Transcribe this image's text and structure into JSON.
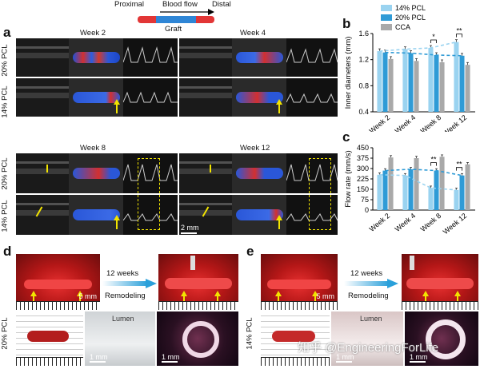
{
  "schematic": {
    "proximal": "Proximal",
    "blood_flow": "Blood flow",
    "distal": "Distal",
    "graft": "Graft",
    "colors": {
      "red": "#e23636",
      "blue": "#2f86d6"
    }
  },
  "panel_a": {
    "label": "a",
    "weeks": [
      "Week 2",
      "Week 4",
      "Week 8",
      "Week 12"
    ],
    "rows": [
      "20% PCL",
      "14% PCL"
    ],
    "scale": "2 mm"
  },
  "panel_b": {
    "label": "b",
    "ylabel": "Inner diameters (mm)",
    "legend": [
      "14% PCL",
      "20% PCL",
      "CCA"
    ],
    "sig": [
      "*",
      "**"
    ]
  },
  "panel_c": {
    "label": "c",
    "ylabel": "Flow rate (mm/s)",
    "sig": [
      "**",
      "**"
    ]
  },
  "panel_d": {
    "label": "d",
    "row": "20% PCL",
    "arrow_top": "12 weeks",
    "arrow_bottom": "Remodeling",
    "scale": "5 mm",
    "lumen": "Lumen",
    "scale_small": "1 mm"
  },
  "panel_e": {
    "label": "e",
    "row": "14% PCL",
    "arrow_top": "12 weeks",
    "arrow_bottom": "Remodeling",
    "scale": "5 mm",
    "lumen": "Lumen",
    "scale_small": "1 mm"
  },
  "watermark": "知乎 @EngineeringForLife",
  "chart_data": [
    {
      "type": "bar",
      "categories": [
        "Week 2",
        "Week 4",
        "Week 8",
        "Week 12"
      ],
      "series": [
        {
          "name": "14% PCL",
          "values": [
            1.33,
            1.36,
            1.38,
            1.47
          ],
          "color": "#9ad3f0"
        },
        {
          "name": "20% PCL",
          "values": [
            1.31,
            1.3,
            1.27,
            1.26
          ],
          "color": "#2f9bd6"
        },
        {
          "name": "CCA",
          "values": [
            1.21,
            1.18,
            1.16,
            1.12
          ],
          "color": "#a9a9a9"
        }
      ],
      "ylabel": "Inner diameters (mm)",
      "ylim": [
        0.4,
        1.6
      ],
      "yticks": [
        0.4,
        0.8,
        1.2,
        1.6
      ],
      "legend": "top"
    },
    {
      "type": "bar",
      "categories": [
        "Week 2",
        "Week 4",
        "Week 8",
        "Week 12"
      ],
      "series": [
        {
          "name": "14% PCL",
          "values": [
            255,
            250,
            160,
            145
          ],
          "color": "#9ad3f0"
        },
        {
          "name": "20% PCL",
          "values": [
            285,
            295,
            285,
            250
          ],
          "color": "#2f9bd6"
        },
        {
          "name": "CCA",
          "values": [
            380,
            375,
            385,
            330
          ],
          "color": "#a9a9a9"
        }
      ],
      "ylabel": "Flow rate (mm/s)",
      "ylim": [
        0,
        450
      ],
      "yticks": [
        0,
        75,
        150,
        225,
        300,
        375,
        450
      ]
    }
  ]
}
